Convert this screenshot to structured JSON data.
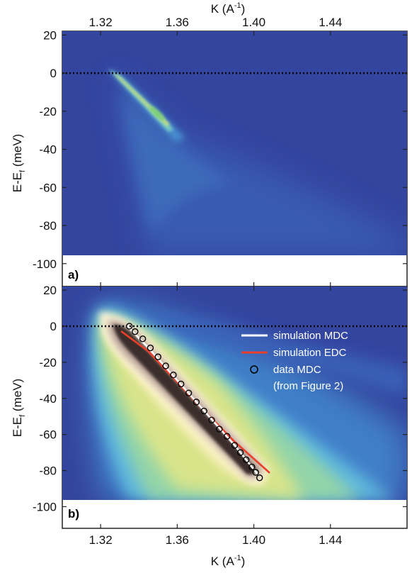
{
  "chart_data": [
    {
      "type": "heatmap",
      "panel_label": "a)",
      "xlabel": "K (A",
      "xlabel_sup": "-1",
      "xlabel_tail": ")",
      "ylabel": "E-E",
      "ylabel_sub": "f",
      "ylabel_tail": " (meV)",
      "xlim": [
        1.3,
        1.48
      ],
      "ylim": [
        -112,
        22
      ],
      "xticks": [
        "1.32",
        "1.36",
        "1.40",
        "1.44"
      ],
      "xtick_values": [
        1.32,
        1.36,
        1.4,
        1.44
      ],
      "yticks": [
        "20",
        "0",
        "-20",
        "-40",
        "-60",
        "-80",
        "-100"
      ],
      "ytick_values": [
        20,
        0,
        -20,
        -40,
        -60,
        -80,
        -100
      ],
      "fermi_level": 0,
      "data_window": {
        "xrange": [
          1.3,
          1.48
        ],
        "yrange": [
          -95,
          22
        ]
      },
      "colormap": [
        "#34459f",
        "#3a62b8",
        "#3f8ad0",
        "#5fb7de",
        "#8fd3b8",
        "#c8e07a",
        "#f3ec9e",
        "#ffffff"
      ]
    },
    {
      "type": "heatmap",
      "panel_label": "b)",
      "xlabel": "K (A",
      "xlabel_sup": "-1",
      "xlabel_tail": ")",
      "ylabel": "E-E",
      "ylabel_sub": "f",
      "ylabel_tail": " (meV)",
      "xlim": [
        1.3,
        1.48
      ],
      "ylim": [
        -112,
        22
      ],
      "xticks": [
        "1.32",
        "1.36",
        "1.40",
        "1.44"
      ],
      "xtick_values": [
        1.32,
        1.36,
        1.4,
        1.44
      ],
      "yticks": [
        "20",
        "0",
        "-20",
        "-40",
        "-60",
        "-80",
        "-100"
      ],
      "ytick_values": [
        20,
        0,
        -20,
        -40,
        -60,
        -80,
        -100
      ],
      "fermi_level": 0,
      "data_window": {
        "xrange": [
          1.3,
          1.48
        ],
        "yrange": [
          -95,
          22
        ]
      },
      "colormap": [
        "#34459f",
        "#3a62b8",
        "#3f8ad0",
        "#5fb7de",
        "#8fd3b8",
        "#c8e07a",
        "#f3ec9e",
        "#fbf3d6",
        "#b8a298",
        "#2f2522"
      ],
      "series": [
        {
          "name": "simulation MDC",
          "color": "#ffffff",
          "x": [
            1.334,
            1.345,
            1.36,
            1.375,
            1.39,
            1.402
          ],
          "y": [
            0,
            -12,
            -30,
            -48,
            -66,
            -82
          ]
        },
        {
          "name": "simulation EDC",
          "color": "#e8402a",
          "x": [
            1.331,
            1.345,
            1.36,
            1.375,
            1.39,
            1.408
          ],
          "y": [
            -3,
            -14,
            -31,
            -48,
            -64,
            -81
          ]
        },
        {
          "name": "data MDC",
          "marker": "circle",
          "color": "#000000",
          "x": [
            1.335,
            1.338,
            1.342,
            1.346,
            1.35,
            1.354,
            1.358,
            1.362,
            1.366,
            1.37,
            1.374,
            1.378,
            1.382,
            1.386,
            1.39,
            1.393,
            1.396,
            1.399,
            1.401,
            1.403
          ],
          "y": [
            0,
            -3,
            -7,
            -12,
            -17,
            -22,
            -27,
            -32,
            -37,
            -42,
            -47,
            -52,
            -57,
            -61,
            -66,
            -70,
            -74,
            -78,
            -81,
            -84
          ]
        }
      ],
      "legend": {
        "placement": "top-right",
        "entries": [
          "simulation MDC",
          "simulation EDC",
          "data MDC",
          "(from Figure 2)"
        ]
      }
    }
  ]
}
